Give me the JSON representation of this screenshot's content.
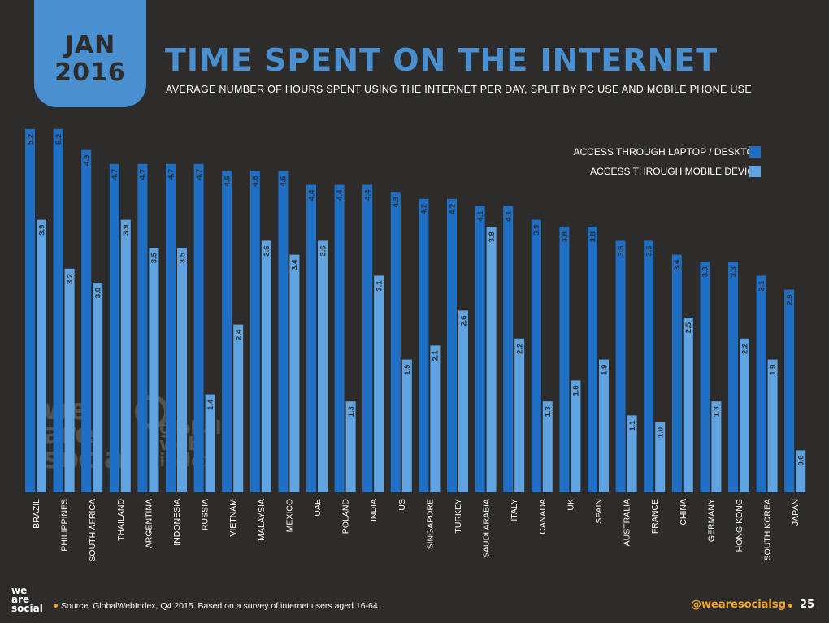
{
  "header": {
    "date_month": "JAN",
    "date_year": "2016",
    "title": "TIME SPENT ON THE INTERNET",
    "subtitle": "AVERAGE NUMBER OF HOURS SPENT USING THE INTERNET PER DAY, SPLIT BY PC USE AND MOBILE PHONE USE"
  },
  "legend": {
    "laptop_label": "ACCESS THROUGH LAPTOP / DESKTOP",
    "mobile_label": "ACCESS THROUGH MOBILE DEVICE"
  },
  "colors": {
    "background": "#2e2c2b",
    "laptop": "#1f6fc4",
    "mobile": "#5fa3e0",
    "accent": "#4a8fd0",
    "footer_accent": "#f6a623"
  },
  "watermark": {
    "logo_lines": [
      "we",
      "are",
      "social"
    ],
    "gwi_lines": [
      "global",
      "web",
      "index"
    ]
  },
  "footer": {
    "logo_lines": [
      "we",
      "are",
      "social"
    ],
    "source": "Source: GlobalWebIndex, Q4 2015. Based on a survey of internet users aged 16-64.",
    "handle": "@wearesocialsg",
    "page_number": "25"
  },
  "chart_data": {
    "type": "bar",
    "title": "TIME SPENT ON THE INTERNET",
    "categories": [
      "BRAZIL",
      "PHILIPPINES",
      "SOUTH AFRICA",
      "THAILAND",
      "ARGENTINA",
      "INDONESIA",
      "RUSSIA",
      "VIETNAM",
      "MALAYSIA",
      "MEXICO",
      "UAE",
      "POLAND",
      "INDIA",
      "US",
      "SINGAPORE",
      "TURKEY",
      "SAUDI ARABIA",
      "ITALY",
      "CANADA",
      "UK",
      "SPAIN",
      "AUSTRALIA",
      "FRANCE",
      "CHINA",
      "GERMANY",
      "HONG KONG",
      "SOUTH KOREA",
      "JAPAN"
    ],
    "series": [
      {
        "name": "ACCESS THROUGH LAPTOP / DESKTOP",
        "values": [
          5.2,
          5.2,
          4.9,
          4.7,
          4.7,
          4.7,
          4.7,
          4.6,
          4.6,
          4.6,
          4.4,
          4.4,
          4.4,
          4.3,
          4.2,
          4.2,
          4.1,
          4.1,
          3.9,
          3.8,
          3.8,
          3.6,
          3.6,
          3.4,
          3.3,
          3.3,
          3.1,
          2.9
        ],
        "labels": [
          "5.2",
          "5.2",
          "4.9",
          "4.7",
          "4.7",
          "4.7",
          "4.7",
          "4.6",
          "4.6",
          "4.6",
          "4.4",
          "4.4",
          "4.4",
          "4.3",
          "4.2",
          "4.2",
          "4.1",
          "4.1",
          "3.9",
          "3.8",
          "3.8",
          "3.6",
          "3.6",
          "3.4",
          "3.3",
          "3.3",
          "3.1",
          "2.9"
        ]
      },
      {
        "name": "ACCESS THROUGH MOBILE DEVICE",
        "values": [
          3.9,
          3.2,
          3.0,
          3.9,
          3.5,
          3.5,
          1.4,
          2.4,
          3.6,
          3.4,
          3.6,
          1.3,
          3.1,
          1.9,
          2.1,
          2.6,
          3.8,
          2.2,
          1.3,
          1.6,
          1.9,
          1.1,
          1.0,
          2.5,
          1.3,
          2.2,
          1.9,
          0.6
        ],
        "labels": [
          "3.9",
          "3.2",
          "3.0",
          "3.9",
          "3.5",
          "3.5",
          "1.4",
          "2.4",
          "3.6",
          "3.4",
          "3.6",
          "1.3",
          "3.1",
          "1.9",
          "2.1",
          "2.6",
          "3.8",
          "2.2",
          "1.3",
          "1.6",
          "1.9",
          "1.1",
          "1.0",
          "2.5",
          "1.3",
          "2.2",
          "1.9",
          "0.6"
        ]
      }
    ],
    "legend_position": "top-right",
    "grid": false
  }
}
